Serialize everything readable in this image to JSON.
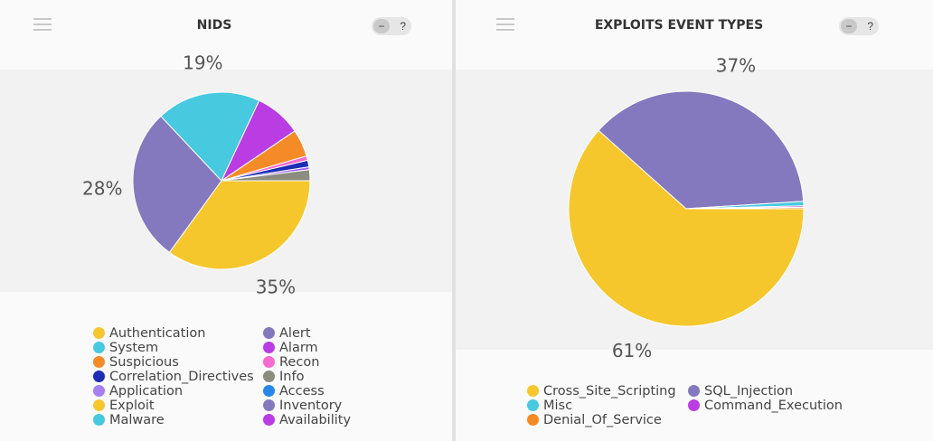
{
  "charts": {
    "nids": {
      "title": "NIDS",
      "toggle_minus": "−",
      "help_label": "?"
    },
    "exploits": {
      "title": "EXPLOITS EVENT TYPES",
      "toggle_minus": "−",
      "help_label": "?"
    }
  },
  "chart_data": [
    {
      "type": "pie",
      "title": "NIDS",
      "legend_position": "bottom",
      "slices": [
        {
          "name": "Exploit",
          "value": 35,
          "label": "35%",
          "color": "#f5c72d"
        },
        {
          "name": "Alert",
          "value": 28,
          "label": "28%",
          "color": "#8479bf"
        },
        {
          "name": "System",
          "value": 19,
          "label": "19%",
          "color": "#47c9e0"
        },
        {
          "name": "Alarm",
          "value": 8.5,
          "label": "",
          "color": "#b93de3"
        },
        {
          "name": "Suspicious",
          "value": 5,
          "label": "",
          "color": "#f58b27"
        },
        {
          "name": "Recon",
          "value": 0.8,
          "label": "",
          "color": "#f56bd0"
        },
        {
          "name": "Correlation_Directives",
          "value": 1.2,
          "label": "",
          "color": "#1d2eb5"
        },
        {
          "name": "Application",
          "value": 0.5,
          "label": "",
          "color": "#a060f0"
        },
        {
          "name": "Info",
          "value": 2,
          "label": "",
          "color": "#8c8c80"
        }
      ],
      "legend": [
        {
          "label": "Authentication",
          "color": "#f5c72d"
        },
        {
          "label": "Alert",
          "color": "#8479bf"
        },
        {
          "label": "System",
          "color": "#47c9e0"
        },
        {
          "label": "Alarm",
          "color": "#b93de3"
        },
        {
          "label": "Suspicious",
          "color": "#f58b27"
        },
        {
          "label": "Recon",
          "color": "#f56bd0"
        },
        {
          "label": "Correlation_Directives",
          "color": "#1d2eb5"
        },
        {
          "label": "Info",
          "color": "#8c8c80"
        },
        {
          "label": "Application",
          "color": "#a77ff2"
        },
        {
          "label": "Access",
          "color": "#2a86e8"
        },
        {
          "label": "Exploit",
          "color": "#f5c72d"
        },
        {
          "label": "Inventory",
          "color": "#8479bf"
        },
        {
          "label": "Malware",
          "color": "#47c9e0"
        },
        {
          "label": "Availability",
          "color": "#b93de3"
        }
      ]
    },
    {
      "type": "pie",
      "title": "EXPLOITS EVENT TYPES",
      "legend_position": "bottom",
      "slices": [
        {
          "name": "Cross_Site_Scripting",
          "value": 61,
          "label": "61%",
          "color": "#f5c72d"
        },
        {
          "name": "SQL_Injection",
          "value": 37,
          "label": "37%",
          "color": "#8479bf"
        },
        {
          "name": "Misc",
          "value": 0.6,
          "label": "",
          "color": "#47c9e0"
        },
        {
          "name": "Command_Execution",
          "value": 0.2,
          "label": "",
          "color": "#b93de3"
        },
        {
          "name": "Denial_Of_Service",
          "value": 0.2,
          "label": "",
          "color": "#f58b27"
        }
      ],
      "legend": [
        {
          "label": "Cross_Site_Scripting",
          "color": "#f5c72d"
        },
        {
          "label": "SQL_Injection",
          "color": "#8479bf"
        },
        {
          "label": "Misc",
          "color": "#47c9e0"
        },
        {
          "label": "Command_Execution",
          "color": "#b93de3"
        },
        {
          "label": "Denial_Of_Service",
          "color": "#f58b27"
        }
      ]
    }
  ]
}
